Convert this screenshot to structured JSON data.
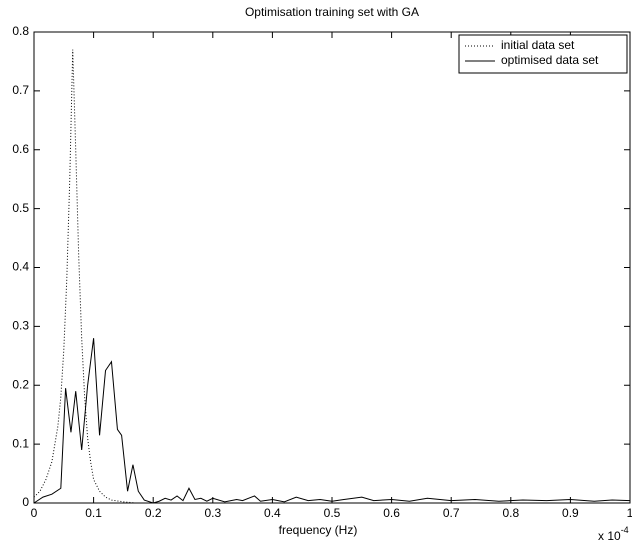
{
  "chart_data": {
    "type": "line",
    "title": "Optimisation training set with GA",
    "x_label": "frequency (Hz)",
    "x_multiplier": {
      "base": "x 10",
      "exponent": "-4"
    },
    "xlim": [
      0,
      1
    ],
    "xticks": [
      0,
      0.1,
      0.2,
      0.3,
      0.4,
      0.5,
      0.6,
      0.7,
      0.8,
      0.9,
      1
    ],
    "ylim": [
      0,
      0.8
    ],
    "yticks": [
      0,
      0.1,
      0.2,
      0.3,
      0.4,
      0.5,
      0.6,
      0.7,
      0.8
    ],
    "grid": false,
    "legend": "top-right",
    "series": [
      {
        "name": "initial data set",
        "color": "#000000",
        "style": "dotted",
        "x": [
          0,
          0.01,
          0.02,
          0.03,
          0.04,
          0.045,
          0.05,
          0.055,
          0.06,
          0.065,
          0.07,
          0.075,
          0.08,
          0.085,
          0.09,
          0.095,
          0.1,
          0.11,
          0.12,
          0.13,
          0.15,
          0.17,
          0.2,
          0.3,
          0.4,
          0.5,
          0.6,
          0.7,
          0.8,
          0.9,
          1
        ],
        "values": [
          0.01,
          0.02,
          0.04,
          0.07,
          0.13,
          0.18,
          0.26,
          0.38,
          0.55,
          0.77,
          0.6,
          0.42,
          0.28,
          0.18,
          0.11,
          0.07,
          0.04,
          0.02,
          0.01,
          0.005,
          0.002,
          0,
          0,
          0,
          0,
          0,
          0,
          0,
          0,
          0,
          0
        ]
      },
      {
        "name": "optimised data set",
        "color": "#000000",
        "style": "solid",
        "x": [
          0,
          0.015,
          0.03,
          0.045,
          0.053,
          0.062,
          0.07,
          0.08,
          0.09,
          0.1,
          0.11,
          0.12,
          0.13,
          0.14,
          0.147,
          0.157,
          0.166,
          0.175,
          0.185,
          0.2,
          0.21,
          0.22,
          0.23,
          0.24,
          0.25,
          0.26,
          0.27,
          0.28,
          0.29,
          0.3,
          0.32,
          0.34,
          0.35,
          0.37,
          0.38,
          0.4,
          0.42,
          0.44,
          0.46,
          0.48,
          0.5,
          0.52,
          0.55,
          0.57,
          0.6,
          0.63,
          0.66,
          0.7,
          0.74,
          0.78,
          0.82,
          0.86,
          0.9,
          0.94,
          0.97,
          1
        ],
        "values": [
          0,
          0.01,
          0.015,
          0.025,
          0.195,
          0.12,
          0.19,
          0.09,
          0.2,
          0.28,
          0.115,
          0.225,
          0.24,
          0.125,
          0.115,
          0.02,
          0.065,
          0.02,
          0.005,
          0,
          0.003,
          0.008,
          0.005,
          0.012,
          0.004,
          0.025,
          0.006,
          0.008,
          0.003,
          0.008,
          0.002,
          0.006,
          0.004,
          0.012,
          0.003,
          0.006,
          0.002,
          0.01,
          0.004,
          0.006,
          0.003,
          0.006,
          0.01,
          0.004,
          0.006,
          0.003,
          0.008,
          0.004,
          0.006,
          0.003,
          0.005,
          0.004,
          0.006,
          0.003,
          0.005,
          0.004
        ]
      }
    ]
  }
}
